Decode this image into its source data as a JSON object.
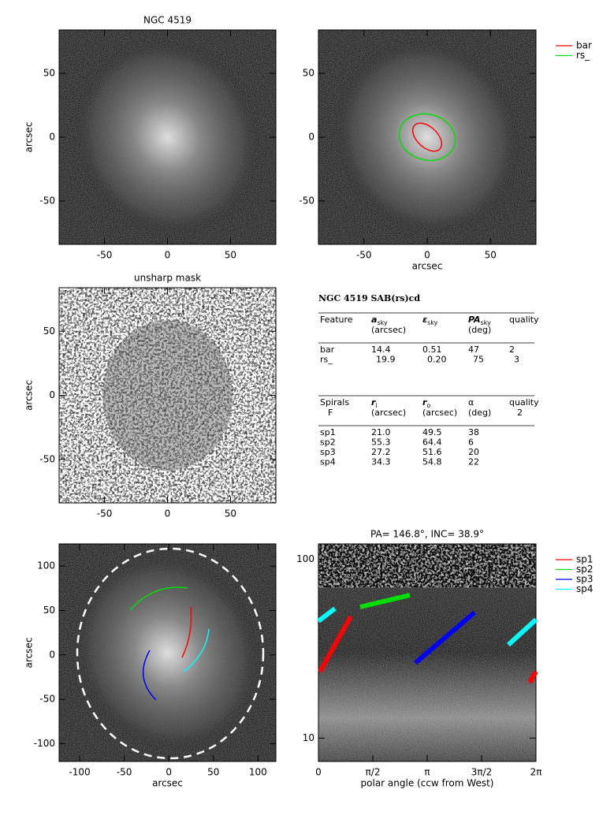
{
  "panels": [
    {
      "title": "NGC 4519",
      "ylabel": "arcsec",
      "xlim": [
        -86,
        86
      ],
      "ylim": [
        -84,
        84
      ],
      "xticks": [
        -50,
        0,
        50
      ],
      "yticks": [
        -50,
        0,
        50
      ]
    },
    {
      "xlabel": "arcsec",
      "xlim": [
        -86,
        86
      ],
      "ylim": [
        -84,
        84
      ],
      "xticks": [
        -50,
        0,
        50
      ],
      "yticks": [
        -50,
        0,
        50
      ],
      "legend": [
        {
          "name": "bar",
          "color": "#ff0000"
        },
        {
          "name": "rs_",
          "color": "#00dd00"
        }
      ]
    },
    {
      "title": "unsharp mask",
      "ylabel": "arcsec",
      "xlim": [
        -86,
        86
      ],
      "ylim": [
        -84,
        84
      ],
      "xticks": [
        -50,
        0,
        50
      ],
      "yticks": [
        -50,
        0,
        50
      ]
    },
    {
      "xlabel": "arcsec",
      "ylabel": "arcsec",
      "xlim": [
        -123,
        120
      ],
      "ylim": [
        -120,
        125
      ],
      "xticks": [
        -100,
        -50,
        0,
        50,
        100
      ],
      "yticks": [
        -100,
        -50,
        0,
        50,
        100
      ]
    },
    {
      "title": "PA= 146.8°, INC=  38.9°",
      "xlabel": "polar angle (ccw from West)",
      "xlim": [
        0,
        6.2832
      ],
      "ylim": [
        7.4,
        122
      ],
      "log": true,
      "xticks": [
        {
          "value": 0,
          "label": "0"
        },
        {
          "value": 1.5708,
          "label": "π/2"
        },
        {
          "value": 3.1416,
          "label": "π"
        },
        {
          "value": 4.7124,
          "label": "3π/2"
        },
        {
          "value": 6.2832,
          "label": "2π"
        }
      ],
      "yticks": [
        10,
        100
      ],
      "legend": [
        {
          "name": "sp1",
          "color": "#ff0000"
        },
        {
          "name": "sp2",
          "color": "#00dd00"
        },
        {
          "name": "sp3",
          "color": "#0000ff"
        },
        {
          "name": "sp4",
          "color": "#00ffff"
        }
      ]
    }
  ],
  "table": {
    "title": "NGC 4519  SAB(rs)cd",
    "features": {
      "headers": [
        {
          "sym": "Feature"
        },
        {
          "sym": "a",
          "sub": "sky",
          "unit": "(arcsec)"
        },
        {
          "sym": "ε",
          "sub": "sky"
        },
        {
          "sym": "PA",
          "sub": "sky",
          "unit": "(deg)"
        },
        {
          "sym": "quality"
        }
      ],
      "rows": [
        [
          "bar",
          "14.4",
          "0.51",
          "47",
          "2"
        ],
        [
          "rs_",
          "19.9",
          "0.20",
          "75",
          "3"
        ]
      ]
    },
    "spirals": {
      "headers": [
        {
          "sym": "Spirals",
          "unit": "F"
        },
        {
          "sym": "r",
          "sub": "i",
          "unit": "(arcsec)"
        },
        {
          "sym": "r",
          "sub": "o",
          "unit": "(arcsec)"
        },
        {
          "sym": "α",
          "unit": "(deg)"
        },
        {
          "sym": "quality",
          "unit": "2"
        }
      ],
      "rows": [
        [
          "sp1",
          "21.0",
          "49.5",
          "38"
        ],
        [
          "sp2",
          "55.3",
          "64.4",
          "6"
        ],
        [
          "sp3",
          "27.2",
          "51.6",
          "20"
        ],
        [
          "sp4",
          "34.3",
          "54.8",
          "22"
        ]
      ]
    }
  }
}
